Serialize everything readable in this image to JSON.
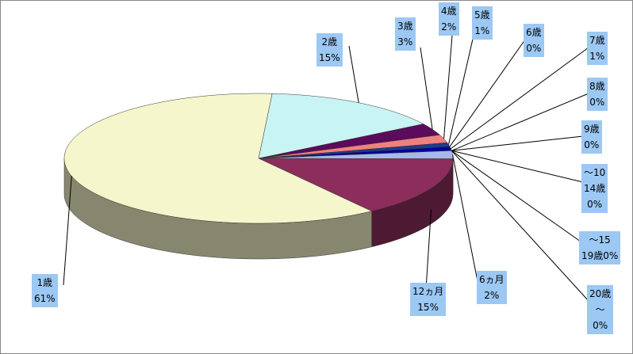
{
  "chart_data": {
    "type": "pie",
    "categories": [
      "2歳",
      "3歳",
      "4歳",
      "5歳",
      "6歳",
      "7歳",
      "8歳",
      "9歳",
      "～10\n14歳",
      "～15\n19歳",
      "20歳\n～",
      "6ヵ月",
      "12ヵ月",
      "1歳"
    ],
    "values": [
      15,
      3,
      2,
      1,
      0,
      1,
      0,
      0,
      0,
      0,
      0,
      2,
      15,
      61
    ],
    "value_labels": [
      "15%",
      "3%",
      "2%",
      "1%",
      "0%",
      "1%",
      "0%",
      "0%",
      "0%",
      "0%",
      "0%",
      "2%",
      "15%",
      "61%"
    ],
    "colors": [
      "#c8f4f4",
      "#5c0a5c",
      "#f08080",
      "#1e3c8c",
      "#c8c8f0",
      "#0000a0",
      "#a050a0",
      "#60a0c0",
      "#90e0e0",
      "#a0e0a0",
      "#e0a0c0",
      "#a8b8e8",
      "#8c2d5c",
      "#f6f6cc"
    ]
  }
}
